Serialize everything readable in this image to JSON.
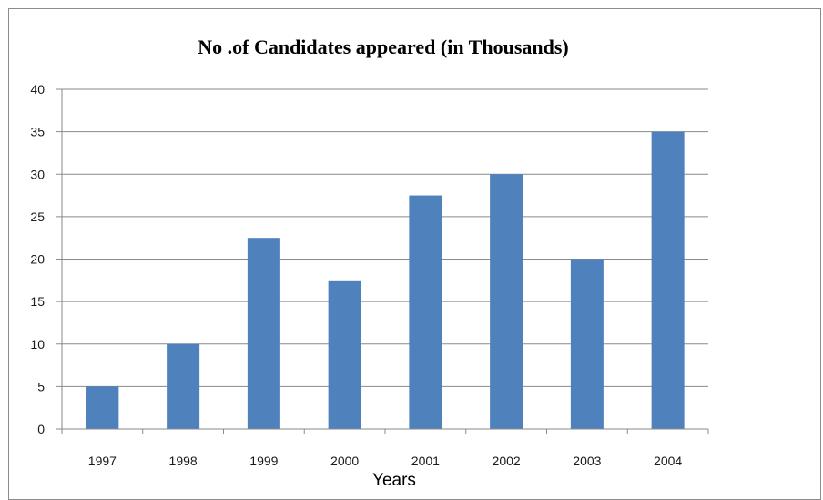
{
  "chart_data": {
    "type": "bar",
    "title": "No .of Candidates appeared (in Thousands)",
    "xlabel": "Years",
    "ylabel": "",
    "categories": [
      "1997",
      "1998",
      "1999",
      "2000",
      "2001",
      "2002",
      "2003",
      "2004"
    ],
    "values": [
      5,
      10,
      22.5,
      17.5,
      27.5,
      30,
      20,
      35
    ],
    "ylim": [
      0,
      40
    ],
    "yticks": [
      0,
      5,
      10,
      15,
      20,
      25,
      30,
      35,
      40
    ],
    "grid": true,
    "legend": "none",
    "bar_color": "#4f81bd"
  }
}
